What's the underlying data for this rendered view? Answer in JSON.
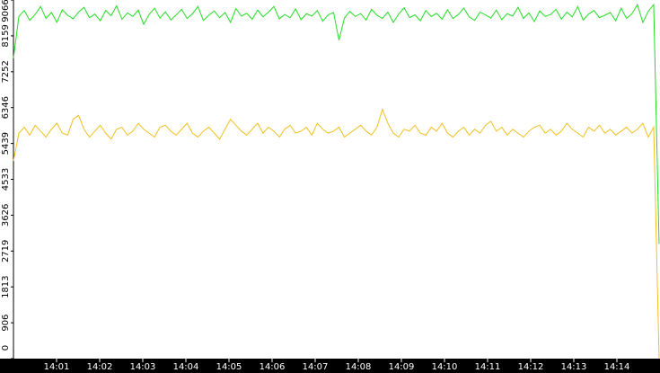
{
  "chart_data": {
    "type": "line",
    "xtick_labels": [
      "14:01",
      "14:02",
      "14:03",
      "14:04",
      "14:05",
      "14:06",
      "14:07",
      "14:08",
      "14:09",
      "14:10",
      "14:11",
      "14:12",
      "14:13",
      "14:14"
    ],
    "ylim": [
      0,
      9066
    ],
    "yticks": [
      0,
      906,
      1813,
      2719,
      3626,
      4533,
      5439,
      6346,
      7252,
      8159,
      9066
    ],
    "series": [
      {
        "color": "#22dd22",
        "values": [
          7600,
          8650,
          8800,
          8550,
          8700,
          8900,
          8600,
          8750,
          8500,
          8820,
          8680,
          8590,
          8760,
          8880,
          8620,
          8710,
          8540,
          8800,
          8670,
          8920,
          8580,
          8740,
          8650,
          8810,
          8450,
          8700,
          8860,
          8610,
          8770,
          8560,
          8690,
          8830,
          8600,
          8720,
          8900,
          8550,
          8680,
          8790,
          8620,
          8750,
          8500,
          8850,
          8660,
          8730,
          8580,
          8810,
          8640,
          8760,
          8900,
          8590,
          8700,
          8620,
          8840,
          8570,
          8720,
          8660,
          8800,
          8530,
          8690,
          8750,
          8050,
          8610,
          8780,
          8650,
          8720,
          8560,
          8830,
          8680,
          8600,
          8760,
          8500,
          8710,
          8870,
          8620,
          8690,
          8540,
          8800,
          8650,
          8730,
          8580,
          8820,
          8600,
          8700,
          8860,
          8640,
          8550,
          8760,
          8690,
          8610,
          8810,
          8570,
          8720,
          8660,
          8880,
          8600,
          8740,
          8520,
          8790,
          8650,
          8700,
          8830,
          8580,
          8760,
          8640,
          8900,
          8560,
          8710,
          8800,
          8620,
          8680,
          8750,
          8540,
          8860,
          8600,
          8720,
          8950,
          8500,
          8780,
          8950,
          2900
        ]
      },
      {
        "color": "#f0c020",
        "values": [
          5000,
          5700,
          5850,
          5650,
          5900,
          5750,
          5600,
          5800,
          5950,
          5700,
          5650,
          6050,
          6150,
          5800,
          5600,
          5750,
          5900,
          5700,
          5550,
          5800,
          5850,
          5650,
          5750,
          5950,
          5800,
          5700,
          5600,
          5850,
          5900,
          5750,
          5650,
          5800,
          5950,
          5700,
          5600,
          5750,
          5850,
          5700,
          5550,
          5800,
          6050,
          5900,
          5750,
          5650,
          5800,
          5950,
          5700,
          5850,
          5750,
          5600,
          5800,
          5900,
          5700,
          5750,
          5850,
          5650,
          5950,
          5800,
          5700,
          5750,
          5850,
          5600,
          5700,
          5800,
          5900,
          5750,
          5650,
          5850,
          6300,
          5950,
          5700,
          5600,
          5800,
          5750,
          5900,
          5700,
          5650,
          5850,
          5750,
          5950,
          5700,
          5600,
          5750,
          5850,
          5650,
          5800,
          5700,
          5900,
          6000,
          5750,
          5850,
          5650,
          5800,
          5700,
          5600,
          5750,
          5850,
          5900,
          5700,
          5800,
          5650,
          5750,
          5950,
          5800,
          5700,
          5600,
          5850,
          5750,
          5900,
          5700,
          5800,
          5650,
          5750,
          5850,
          5700,
          5800,
          5950,
          5600,
          5850,
          0
        ]
      }
    ]
  }
}
